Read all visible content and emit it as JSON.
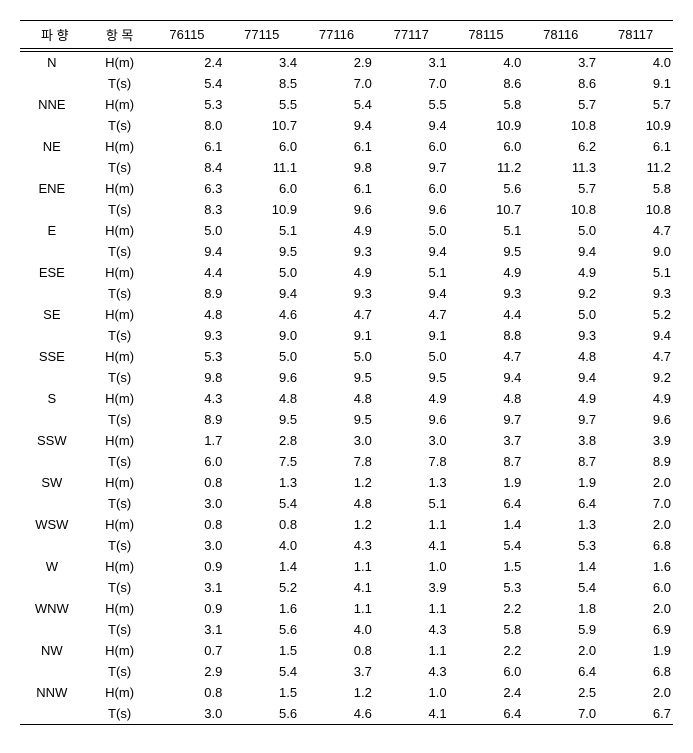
{
  "headers": [
    "파 향",
    "항 목",
    "76115",
    "77115",
    "77116",
    "77117",
    "78115",
    "78116",
    "78117"
  ],
  "measures": [
    "H(m)",
    "T(s)"
  ],
  "directions": [
    "N",
    "NNE",
    "NE",
    "ENE",
    "E",
    "ESE",
    "SE",
    "SSE",
    "S",
    "SSW",
    "SW",
    "WSW",
    "W",
    "WNW",
    "NW",
    "NNW"
  ],
  "rows": [
    [
      "2.4",
      "3.4",
      "2.9",
      "3.1",
      "4.0",
      "3.7",
      "4.0"
    ],
    [
      "5.4",
      "8.5",
      "7.0",
      "7.0",
      "8.6",
      "8.6",
      "9.1"
    ],
    [
      "5.3",
      "5.5",
      "5.4",
      "5.5",
      "5.8",
      "5.7",
      "5.7"
    ],
    [
      "8.0",
      "10.7",
      "9.4",
      "9.4",
      "10.9",
      "10.8",
      "10.9"
    ],
    [
      "6.1",
      "6.0",
      "6.1",
      "6.0",
      "6.0",
      "6.2",
      "6.1"
    ],
    [
      "8.4",
      "11.1",
      "9.8",
      "9.7",
      "11.2",
      "11.3",
      "11.2"
    ],
    [
      "6.3",
      "6.0",
      "6.1",
      "6.0",
      "5.6",
      "5.7",
      "5.8"
    ],
    [
      "8.3",
      "10.9",
      "9.6",
      "9.6",
      "10.7",
      "10.8",
      "10.8"
    ],
    [
      "5.0",
      "5.1",
      "4.9",
      "5.0",
      "5.1",
      "5.0",
      "4.7"
    ],
    [
      "9.4",
      "9.5",
      "9.3",
      "9.4",
      "9.5",
      "9.4",
      "9.0"
    ],
    [
      "4.4",
      "5.0",
      "4.9",
      "5.1",
      "4.9",
      "4.9",
      "5.1"
    ],
    [
      "8.9",
      "9.4",
      "9.3",
      "9.4",
      "9.3",
      "9.2",
      "9.3"
    ],
    [
      "4.8",
      "4.6",
      "4.7",
      "4.7",
      "4.4",
      "5.0",
      "5.2"
    ],
    [
      "9.3",
      "9.0",
      "9.1",
      "9.1",
      "8.8",
      "9.3",
      "9.4"
    ],
    [
      "5.3",
      "5.0",
      "5.0",
      "5.0",
      "4.7",
      "4.8",
      "4.7"
    ],
    [
      "9.8",
      "9.6",
      "9.5",
      "9.5",
      "9.4",
      "9.4",
      "9.2"
    ],
    [
      "4.3",
      "4.8",
      "4.8",
      "4.9",
      "4.8",
      "4.9",
      "4.9"
    ],
    [
      "8.9",
      "9.5",
      "9.5",
      "9.6",
      "9.7",
      "9.7",
      "9.6"
    ],
    [
      "1.7",
      "2.8",
      "3.0",
      "3.0",
      "3.7",
      "3.8",
      "3.9"
    ],
    [
      "6.0",
      "7.5",
      "7.8",
      "7.8",
      "8.7",
      "8.7",
      "8.9"
    ],
    [
      "0.8",
      "1.3",
      "1.2",
      "1.3",
      "1.9",
      "1.9",
      "2.0"
    ],
    [
      "3.0",
      "5.4",
      "4.8",
      "5.1",
      "6.4",
      "6.4",
      "7.0"
    ],
    [
      "0.8",
      "0.8",
      "1.2",
      "1.1",
      "1.4",
      "1.3",
      "2.0"
    ],
    [
      "3.0",
      "4.0",
      "4.3",
      "4.1",
      "5.4",
      "5.3",
      "6.8"
    ],
    [
      "0.9",
      "1.4",
      "1.1",
      "1.0",
      "1.5",
      "1.4",
      "1.6"
    ],
    [
      "3.1",
      "5.2",
      "4.1",
      "3.9",
      "5.3",
      "5.4",
      "6.0"
    ],
    [
      "0.9",
      "1.6",
      "1.1",
      "1.1",
      "2.2",
      "1.8",
      "2.0"
    ],
    [
      "3.1",
      "5.6",
      "4.0",
      "4.3",
      "5.8",
      "5.9",
      "6.9"
    ],
    [
      "0.7",
      "1.5",
      "0.8",
      "1.1",
      "2.2",
      "2.0",
      "1.9"
    ],
    [
      "2.9",
      "5.4",
      "3.7",
      "4.3",
      "6.0",
      "6.4",
      "6.8"
    ],
    [
      "0.8",
      "1.5",
      "1.2",
      "1.0",
      "2.4",
      "2.5",
      "2.0"
    ],
    [
      "3.0",
      "5.6",
      "4.6",
      "4.1",
      "6.4",
      "7.0",
      "6.7"
    ]
  ]
}
